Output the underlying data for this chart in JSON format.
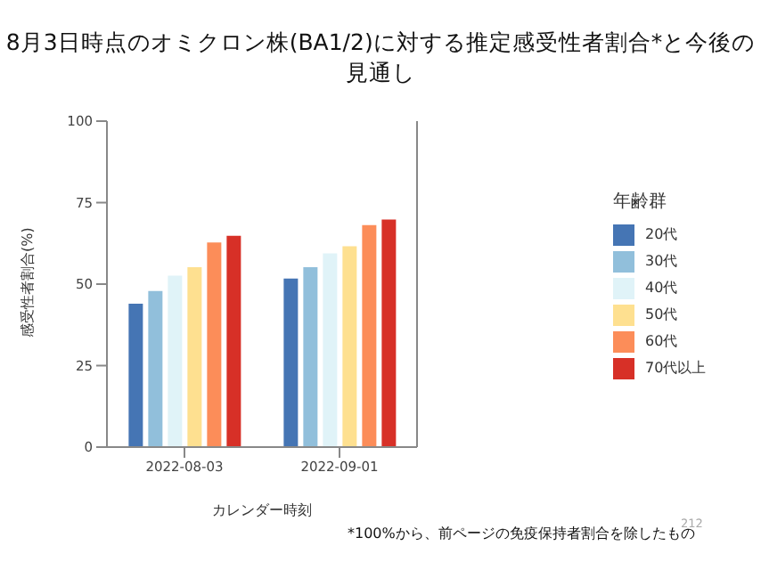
{
  "chart_data": {
    "type": "bar",
    "title": "8月3日時点のオミクロン株(BA1/2)に対する推定感受性者割合*と今後の見通し",
    "xlabel": "カレンダー時刻",
    "ylabel": "感受性者割合(%)",
    "legend_title": "年齢群",
    "categories": [
      "2022-08-03",
      "2022-09-01"
    ],
    "series": [
      {
        "name": "20代",
        "color": "#4575b4",
        "values": [
          44,
          51.7
        ]
      },
      {
        "name": "30代",
        "color": "#91bfdb",
        "values": [
          47.9,
          55.2
        ]
      },
      {
        "name": "40代",
        "color": "#e0f3f8",
        "values": [
          52.6,
          59.4
        ]
      },
      {
        "name": "50代",
        "color": "#fee090",
        "values": [
          55.2,
          61.6
        ]
      },
      {
        "name": "60代",
        "color": "#fc8d59",
        "values": [
          62.8,
          68.1
        ]
      },
      {
        "name": "70代以上",
        "color": "#d73027",
        "values": [
          64.8,
          69.8
        ]
      }
    ],
    "ylim": [
      0,
      100
    ],
    "yticks": [
      0,
      25,
      50,
      75,
      100
    ],
    "grid": false,
    "legend": "right",
    "annotations": [
      "*100%から、前ページの免疫保持者割合を除したもの",
      "212"
    ]
  }
}
